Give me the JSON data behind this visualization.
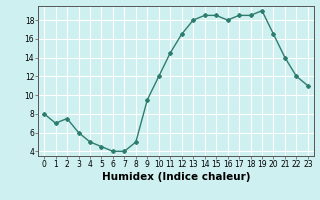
{
  "x": [
    0,
    1,
    2,
    3,
    4,
    5,
    6,
    7,
    8,
    9,
    10,
    11,
    12,
    13,
    14,
    15,
    16,
    17,
    18,
    19,
    20,
    21,
    22,
    23
  ],
  "y": [
    8.0,
    7.0,
    7.5,
    6.0,
    5.0,
    4.5,
    4.0,
    4.0,
    5.0,
    9.5,
    12.0,
    14.5,
    16.5,
    18.0,
    18.5,
    18.5,
    18.0,
    18.5,
    18.5,
    19.0,
    16.5,
    14.0,
    12.0,
    11.0
  ],
  "line_color": "#2d7d6e",
  "marker": "D",
  "marker_size": 2,
  "bg_color": "#cff0f0",
  "grid_color": "#ffffff",
  "xlabel": "Humidex (Indice chaleur)",
  "ylim": [
    3.5,
    19.5
  ],
  "xlim": [
    -0.5,
    23.5
  ],
  "yticks": [
    4,
    6,
    8,
    10,
    12,
    14,
    16,
    18
  ],
  "xticks": [
    0,
    1,
    2,
    3,
    4,
    5,
    6,
    7,
    8,
    9,
    10,
    11,
    12,
    13,
    14,
    15,
    16,
    17,
    18,
    19,
    20,
    21,
    22,
    23
  ],
  "tick_fontsize": 5.5,
  "xlabel_fontsize": 7.5,
  "line_width": 1.0
}
